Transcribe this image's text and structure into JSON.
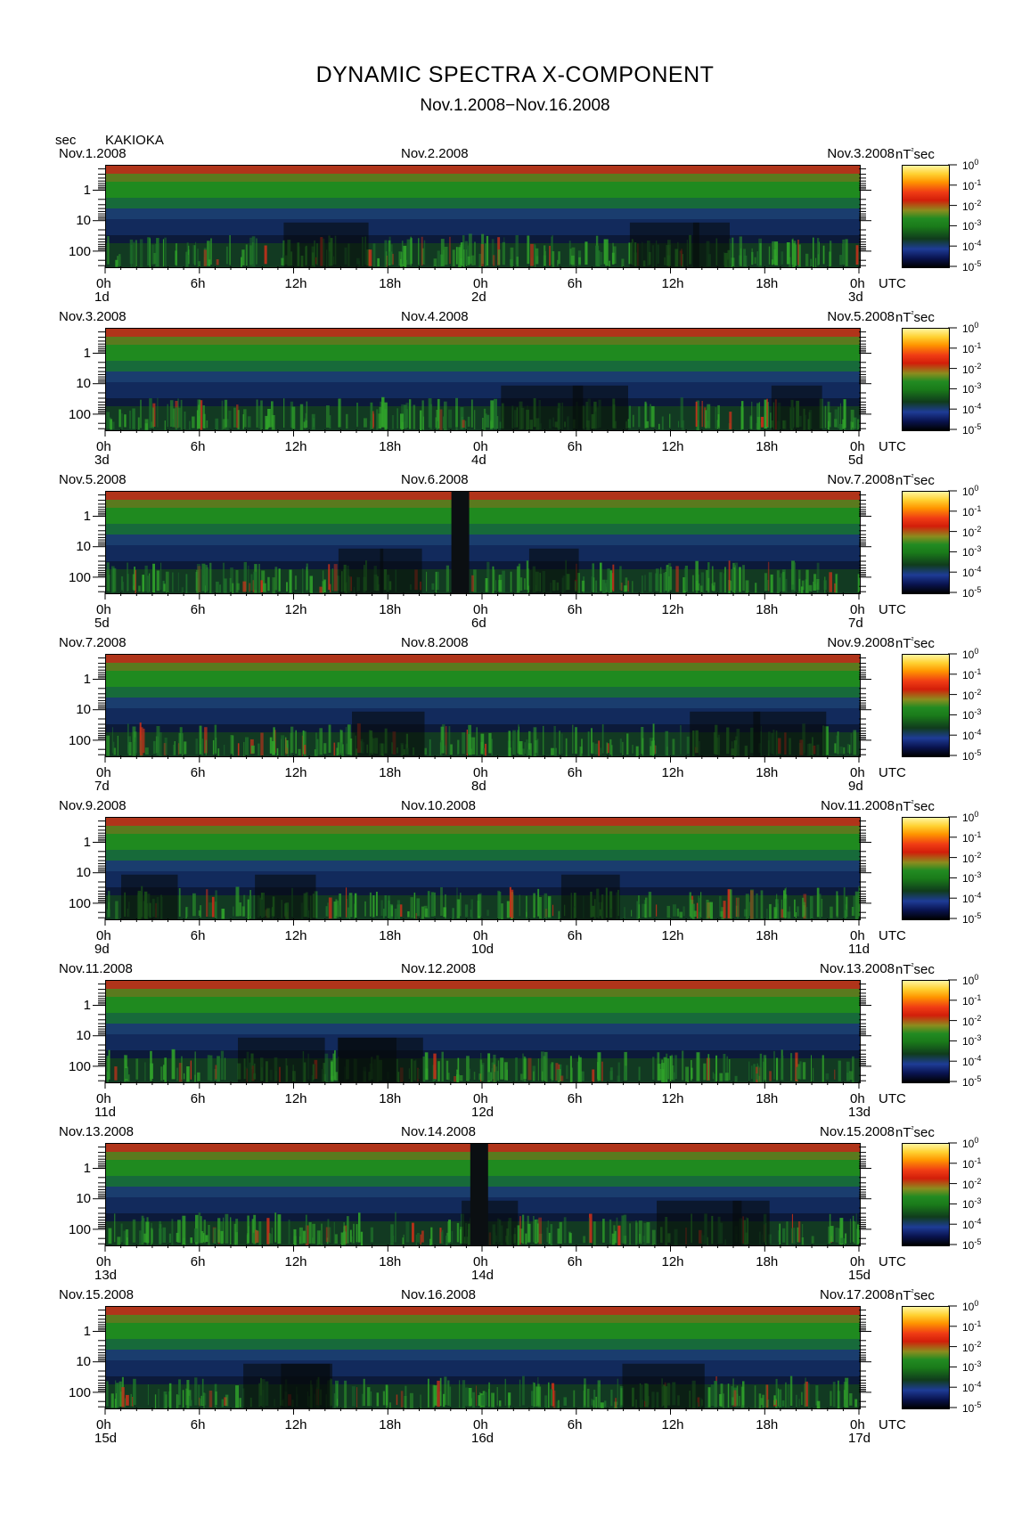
{
  "figure": {
    "title": "DYNAMIC SPECTRA X-COMPONENT",
    "subtitle": "Nov.1.2008−Nov.16.2008",
    "y_unit": "sec",
    "station": "KAKIOKA",
    "colorbar_unit": "nT²sec",
    "utc_label": "UTC"
  },
  "chart_data": {
    "type": "heatmap",
    "title": "DYNAMIC SPECTRA X-COMPONENT",
    "subtitle": "Nov.1.2008−Nov.16.2008",
    "ylabel": "sec",
    "y_ticks": [
      "1",
      "10",
      "100"
    ],
    "y_scale": "log",
    "x_ticks": [
      "0h",
      "6h",
      "12h",
      "18h",
      "0h",
      "6h",
      "12h",
      "18h",
      "0h"
    ],
    "colorbar": {
      "unit": "nT²sec",
      "scale": "log",
      "tick_exponents": [
        "0",
        "-1",
        "-2",
        "-3",
        "-4",
        "-5"
      ],
      "colors": [
        "#000000",
        "#1e3c96",
        "#1a7a1a",
        "#d21e0a",
        "#ff9600",
        "#fff5a0"
      ]
    },
    "panels": [
      {
        "left_date": "Nov.1.2008",
        "mid_date": "Nov.2.2008",
        "right_date": "Nov.3.2008",
        "day_labels": [
          "1d",
          "2d",
          "3d"
        ],
        "gap_days": []
      },
      {
        "left_date": "Nov.3.2008",
        "mid_date": "Nov.4.2008",
        "right_date": "Nov.5.2008",
        "day_labels": [
          "3d",
          "4d",
          "5d"
        ],
        "gap_days": []
      },
      {
        "left_date": "Nov.5.2008",
        "mid_date": "Nov.6.2008",
        "right_date": "Nov.7.2008",
        "day_labels": [
          "5d",
          "6d",
          "7d"
        ],
        "gap_days": [
          0.94
        ]
      },
      {
        "left_date": "Nov.7.2008",
        "mid_date": "Nov.8.2008",
        "right_date": "Nov.9.2008",
        "day_labels": [
          "7d",
          "8d",
          "9d"
        ],
        "gap_days": []
      },
      {
        "left_date": "Nov.9.2008",
        "mid_date": "Nov.10.2008",
        "right_date": "Nov.11.2008",
        "day_labels": [
          "9d",
          "10d",
          "11d"
        ],
        "gap_days": []
      },
      {
        "left_date": "Nov.11.2008",
        "mid_date": "Nov.12.2008",
        "right_date": "Nov.13.2008",
        "day_labels": [
          "11d",
          "12d",
          "13d"
        ],
        "gap_days": []
      },
      {
        "left_date": "Nov.13.2008",
        "mid_date": "Nov.14.2008",
        "right_date": "Nov.15.2008",
        "day_labels": [
          "13d",
          "14d",
          "15d"
        ],
        "gap_days": [
          0.99
        ]
      },
      {
        "left_date": "Nov.15.2008",
        "mid_date": "Nov.16.2008",
        "right_date": "Nov.17.2008",
        "day_labels": [
          "15d",
          "16d",
          "17d"
        ],
        "gap_days": []
      }
    ]
  }
}
